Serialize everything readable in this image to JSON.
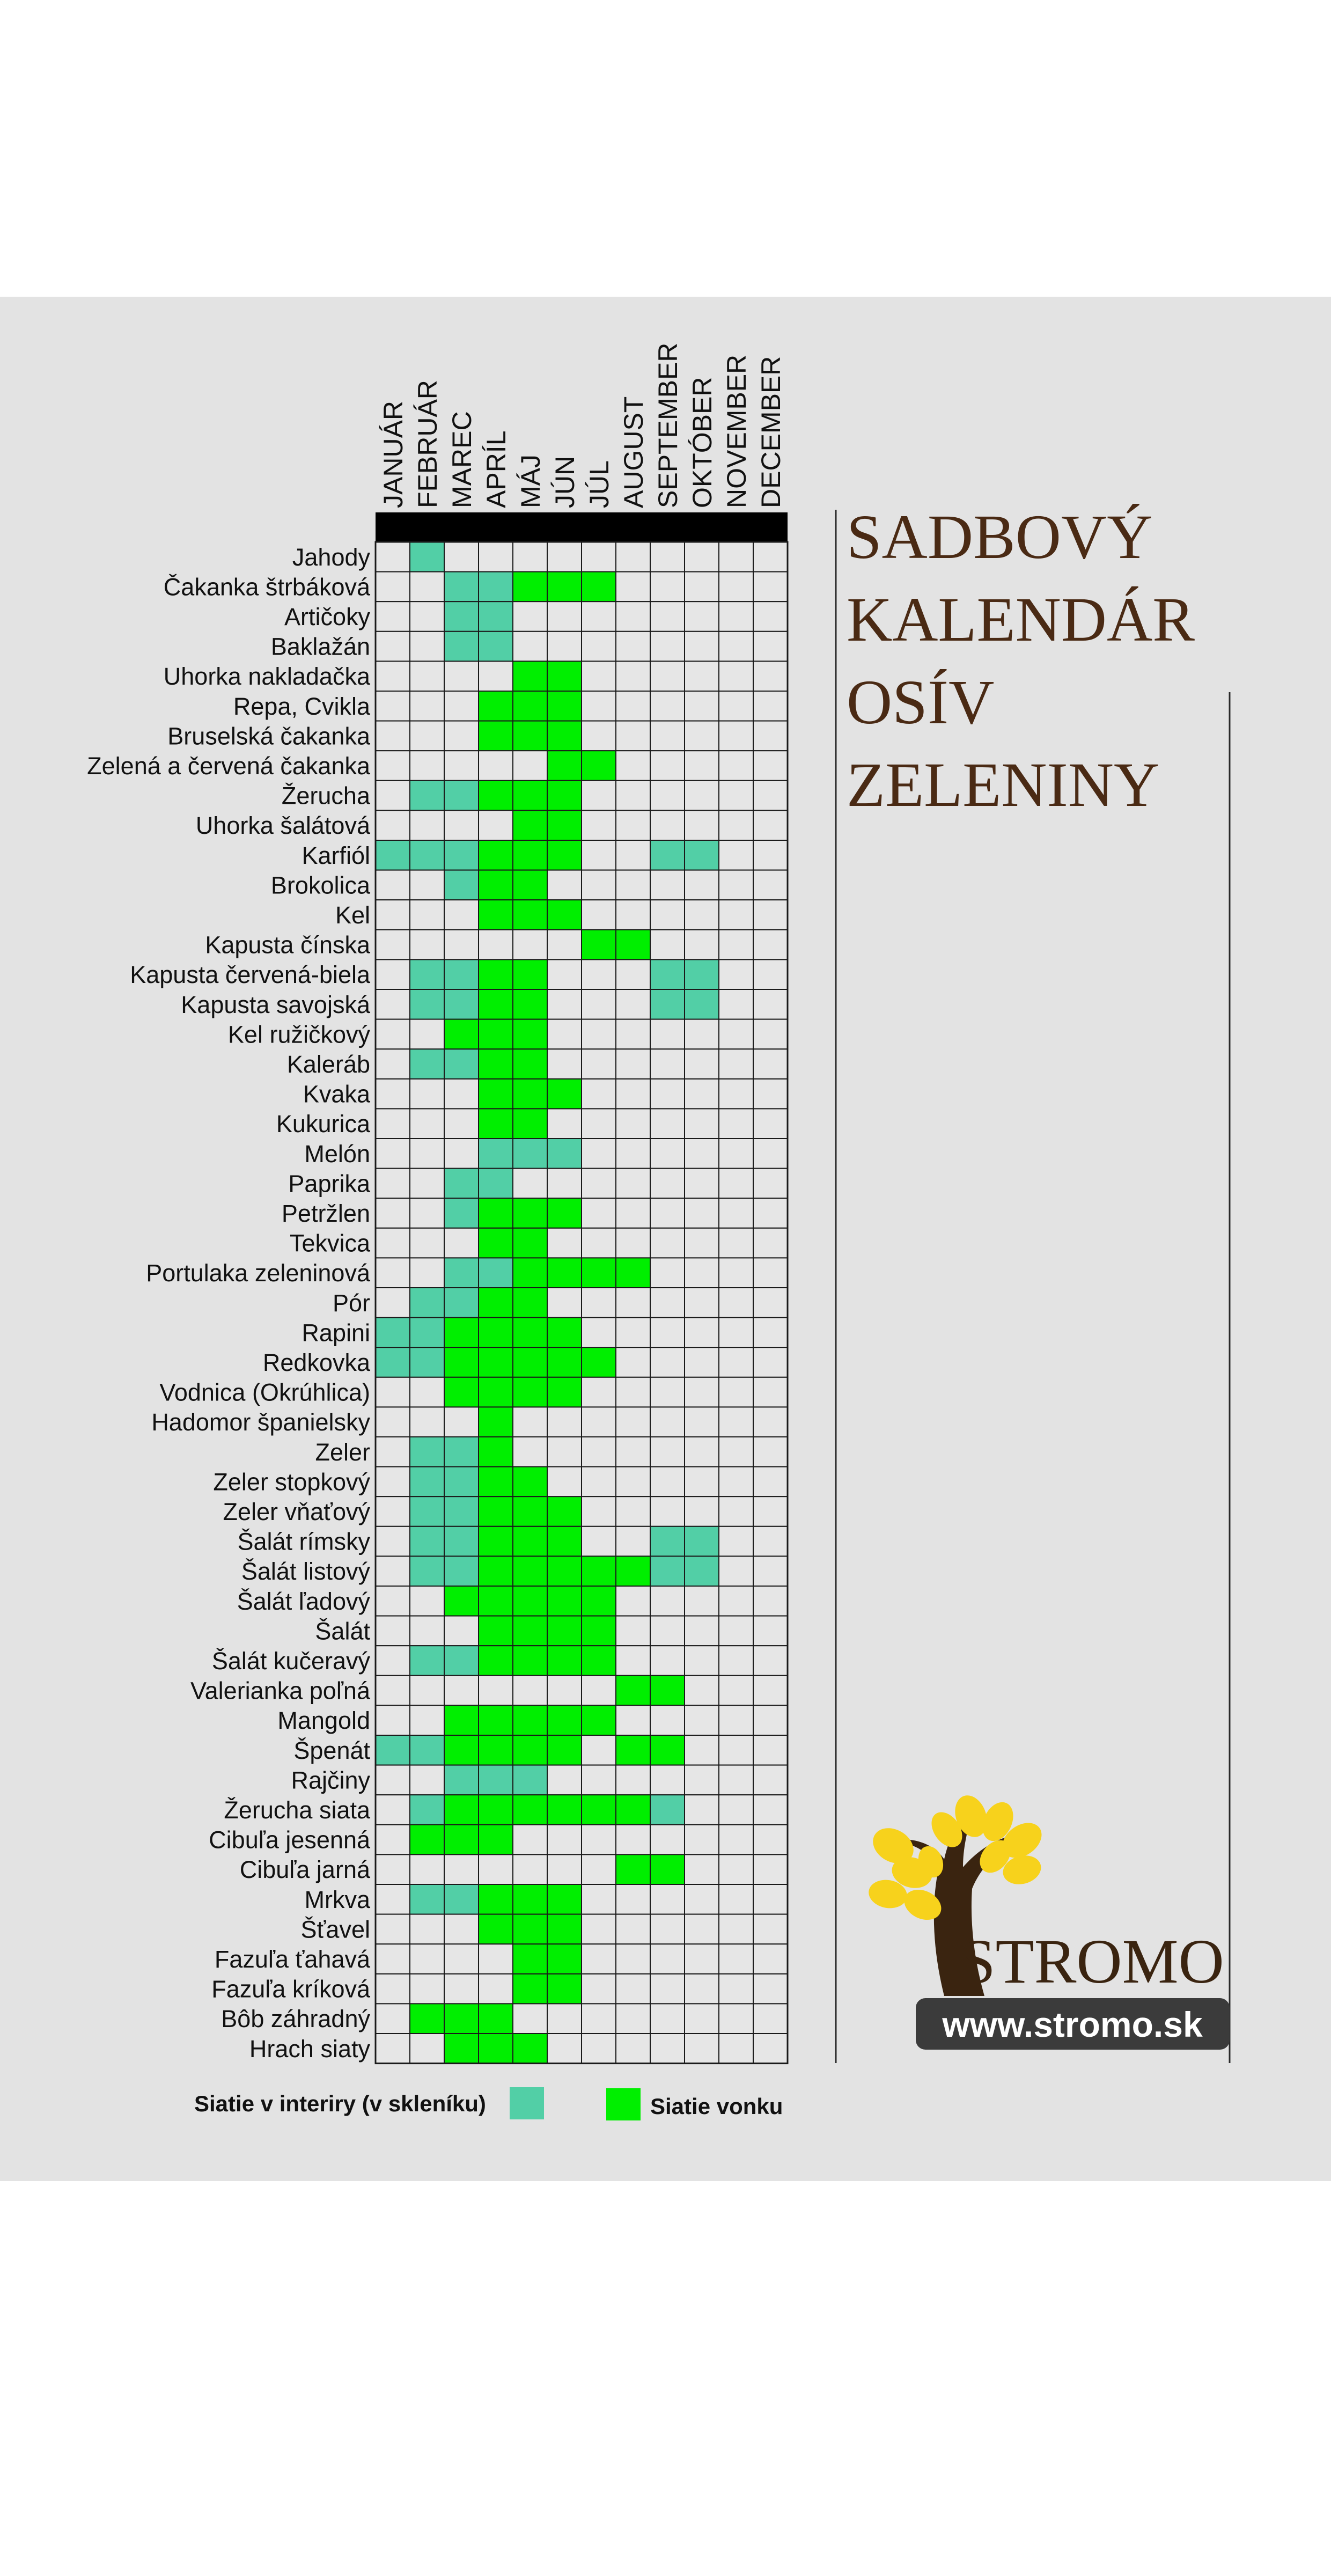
{
  "title_lines": [
    "SADBOVÝ",
    "KALENDÁR",
    "OSÍV",
    "ZELENINY"
  ],
  "brand": {
    "name": "STROMO",
    "url": "www.stromo.sk"
  },
  "colors": {
    "panel": "#e3e3e3",
    "cell": "#e6e6e6",
    "grid": "#1a1a1a",
    "indoor": "#52cfa6",
    "outdoor": "#00ef00",
    "title": "#4a2a14",
    "leaf": "#f7d21c",
    "trunk": "#3a2410",
    "url_bg": "#3b3b3b"
  },
  "legend": {
    "indoor": "Siatie v interiry (v skleníku)",
    "outdoor": "Siatie vonku"
  },
  "chart_data": {
    "type": "heatmap",
    "title": "SADBOVÝ KALENDÁR OSÍV ZELENINY",
    "months": [
      "JANUÁR",
      "FEBRUÁR",
      "MAREC",
      "APRÍL",
      "MÁJ",
      "JÚN",
      "JÚL",
      "AUGUST",
      "SEPTEMBER",
      "OKTÓBER",
      "NOVEMBER",
      "DECEMBER"
    ],
    "legend": {
      "I": "Siatie v interiry (v skleníku)",
      "O": "Siatie vonku"
    },
    "rows": [
      {
        "name": "Jahody",
        "cells": "-I----------"
      },
      {
        "name": "Čakanka štrbáková",
        "cells": "--IIOOO-----"
      },
      {
        "name": "Artičoky",
        "cells": "--II--------"
      },
      {
        "name": "Baklažán",
        "cells": "--II--------"
      },
      {
        "name": "Uhorka nakladačka",
        "cells": "----OO------"
      },
      {
        "name": "Repa, Cvikla",
        "cells": "---OOO------"
      },
      {
        "name": "Bruselská čakanka",
        "cells": "---OOO------"
      },
      {
        "name": "Zelená a červená čakanka",
        "cells": "-----OO-----"
      },
      {
        "name": "Žerucha",
        "cells": "-IIOOO------"
      },
      {
        "name": "Uhorka šalátová",
        "cells": "----OO------"
      },
      {
        "name": "Karfiól",
        "cells": "IIIOOO--II--"
      },
      {
        "name": "Brokolica",
        "cells": "--IOO-------"
      },
      {
        "name": "Kel",
        "cells": "---OOO------"
      },
      {
        "name": "Kapusta čínska",
        "cells": "------OO----"
      },
      {
        "name": "Kapusta červená-biela",
        "cells": "-IIOO---II--"
      },
      {
        "name": "Kapusta savojská",
        "cells": "-IIOO---II--"
      },
      {
        "name": "Kel ružičkový",
        "cells": "--OOO-------"
      },
      {
        "name": "Kaleráb",
        "cells": "-IIOO-------"
      },
      {
        "name": "Kvaka",
        "cells": "---OOO------"
      },
      {
        "name": "Kukurica",
        "cells": "---OO-------"
      },
      {
        "name": "Melón",
        "cells": "---III------"
      },
      {
        "name": "Paprika",
        "cells": "--II--------"
      },
      {
        "name": "Petržlen",
        "cells": "--IOOO------"
      },
      {
        "name": "Tekvica",
        "cells": "---OO-------"
      },
      {
        "name": "Portulaka zeleninová",
        "cells": "--IIOOOO----"
      },
      {
        "name": "Pór",
        "cells": "-IIOO-------"
      },
      {
        "name": "Rapini",
        "cells": "IIOOOO------"
      },
      {
        "name": "Redkovka",
        "cells": "IIOOOOO-----"
      },
      {
        "name": "Vodnica (Okrúhlica)",
        "cells": "--OOOO------"
      },
      {
        "name": "Hadomor španielsky",
        "cells": "---O--------"
      },
      {
        "name": "Zeler",
        "cells": "-IIO--------"
      },
      {
        "name": "Zeler stopkový",
        "cells": "-IIOO-------"
      },
      {
        "name": "Zeler vňaťový",
        "cells": "-IIOOO------"
      },
      {
        "name": "Šalát rímsky",
        "cells": "-IIOOO--II--"
      },
      {
        "name": "Šalát listový",
        "cells": "-IIOOOOOII--"
      },
      {
        "name": "Šalát ľadový",
        "cells": "--OOOOO-----"
      },
      {
        "name": "Šalát",
        "cells": "---OOOO-----"
      },
      {
        "name": "Šalát kučeravý",
        "cells": "-IIOOOO-----"
      },
      {
        "name": "Valerianka poľná",
        "cells": "-------OO---"
      },
      {
        "name": "Mangold",
        "cells": "--OOOOO-----"
      },
      {
        "name": "Špenát",
        "cells": "IIOOOO-OO---"
      },
      {
        "name": "Rajčiny",
        "cells": "--III-------"
      },
      {
        "name": "Žerucha siata",
        "cells": "-IOOOOOOI---"
      },
      {
        "name": "Cibuľa jesenná",
        "cells": "-OOO--------"
      },
      {
        "name": "Cibuľa jarná",
        "cells": "-------OO---"
      },
      {
        "name": "Mrkva",
        "cells": "-IIOOO------"
      },
      {
        "name": "Šťavel",
        "cells": "---OOO------"
      },
      {
        "name": "Fazuľa ťahavá",
        "cells": "----OO------"
      },
      {
        "name": "Fazuľa kríková",
        "cells": "----OO------"
      },
      {
        "name": "Bôb záhradný",
        "cells": "-OOO--------"
      },
      {
        "name": "Hrach siaty",
        "cells": "--OOO-------"
      }
    ]
  }
}
